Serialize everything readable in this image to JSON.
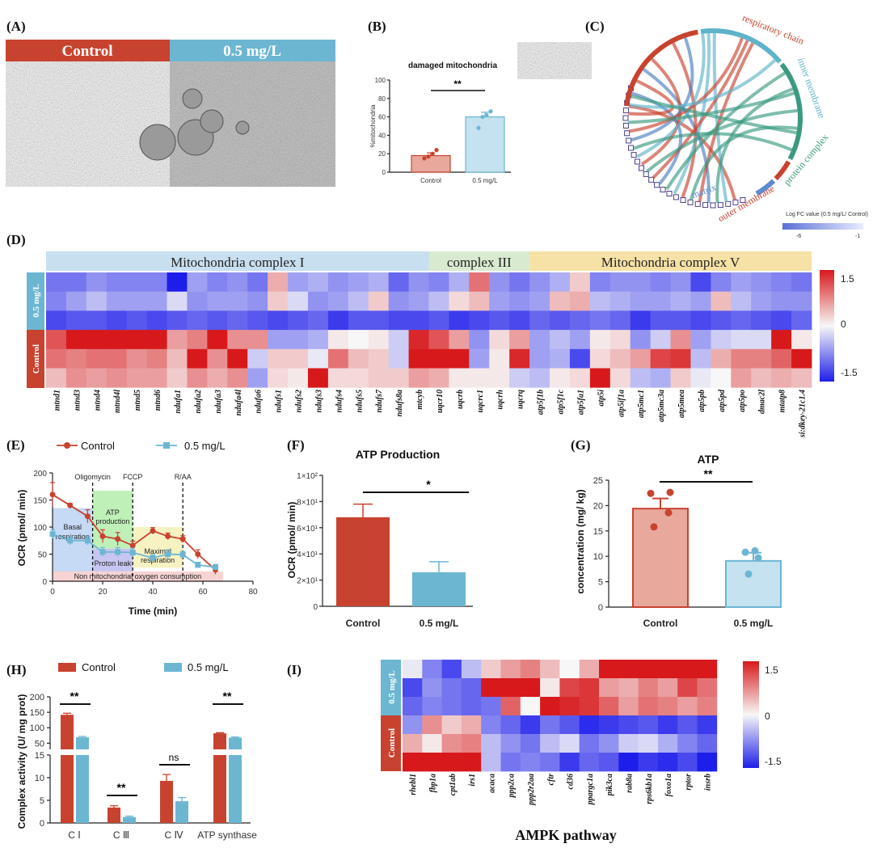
{
  "panels": {
    "a": "(A)",
    "b": "(B)",
    "c": "(C)",
    "d": "(D)",
    "e": "(E)",
    "f": "(F)",
    "g": "(G)",
    "h": "(H)",
    "i": "(I)"
  },
  "colors": {
    "control": "#c8432f",
    "treat": "#6cb6d2",
    "red": "#d7191c",
    "white": "#f7f7f7",
    "blue": "#1f1fe8"
  },
  "chart_data": [
    {
      "id": "A",
      "type": "image",
      "labels": [
        "Control",
        "0.5 mg/L"
      ]
    },
    {
      "id": "B",
      "type": "bar",
      "title": "damaged mitochondria",
      "ylabel": "%mitochondria",
      "categories": [
        "Control",
        "0.5 mg/L"
      ],
      "values": [
        18,
        60
      ],
      "errors": [
        3,
        5
      ],
      "points": [
        [
          15,
          17,
          20,
          24
        ],
        [
          48,
          60,
          62,
          66
        ]
      ],
      "ylim": [
        0,
        100
      ],
      "yticks": [
        0,
        20,
        40,
        60,
        80,
        100
      ],
      "sig": "**"
    },
    {
      "id": "C",
      "type": "chord",
      "categories": [
        "respiratory chain",
        "inner membrane",
        "protein complex",
        "outer membrane",
        "matrix"
      ],
      "legend_title": "Log FC value (0.5 mg/L/ Control)",
      "legend_min": "-6",
      "legend_max": "-1"
    },
    {
      "id": "D",
      "type": "heatmap",
      "groups": [
        "Mitochondria complex I",
        "complex III",
        "Mitochondria complex V"
      ],
      "row_groups": [
        "0.5 mg/L",
        "Control"
      ],
      "genes": [
        "mtnd1",
        "mtnd3",
        "mtnd4",
        "mtnd4l",
        "mtnd5",
        "mtnd6",
        "ndufa1",
        "ndufa2",
        "ndufa3",
        "ndufa4l",
        "ndufa6",
        "ndufs1",
        "ndufs2",
        "ndufs3",
        "ndufs4",
        "ndufs5",
        "ndufs7",
        "ndufs8a",
        "mtcyb",
        "uqcr10",
        "uqcrb",
        "uqcrc1",
        "uqcrh",
        "uqcrq",
        "atp5f1b",
        "atp5f1c",
        "atp5fa1",
        "atp5i",
        "atp5if1a",
        "atp5mc1",
        "atp5mc3a",
        "atp5mea",
        "atp5pb",
        "atp5pd",
        "atp5po",
        "dmac2l",
        "mtatp8",
        "si:dkey-21c1.4"
      ],
      "colorbar": [
        "1.5",
        "0",
        "-1.5"
      ],
      "values": [
        [
          -0.9,
          -0.9,
          -0.7,
          -0.8,
          -0.8,
          -0.8,
          -1.5,
          -0.6,
          -0.8,
          -0.7,
          -0.9,
          0.5,
          -0.6,
          -0.5,
          -0.7,
          -0.6,
          -0.5,
          -1.0,
          -0.7,
          -0.8,
          -0.5,
          0.9,
          -0.7,
          -0.9,
          -0.7,
          -0.5,
          0.3,
          -0.8,
          -0.7,
          -0.7,
          -0.8,
          -0.7,
          -1.2,
          -0.8,
          -0.6,
          -0.7,
          -0.8,
          -0.9
        ],
        [
          -0.8,
          -0.6,
          -0.4,
          -0.6,
          -0.6,
          -0.6,
          -0.2,
          -0.7,
          -0.6,
          -0.6,
          -0.7,
          0.3,
          -0.2,
          -0.7,
          -0.6,
          -0.4,
          0.3,
          -0.7,
          -0.6,
          -0.4,
          0.2,
          0.4,
          -0.6,
          -0.7,
          -0.6,
          0.4,
          0.5,
          -0.4,
          -0.5,
          -0.6,
          -0.6,
          -0.5,
          -0.6,
          0.4,
          -0.4,
          -0.6,
          -0.7,
          -0.7
        ],
        [
          -1.2,
          -1.1,
          -1.1,
          -1.2,
          -1.1,
          -1.2,
          -1.1,
          -1.0,
          -1.1,
          -1.0,
          -1.1,
          -1.2,
          -1.1,
          -1.0,
          -1.3,
          -1.1,
          -1.1,
          -1.2,
          -1.2,
          -1.1,
          -1.3,
          -1.2,
          -1.1,
          -1.2,
          -1.0,
          -1.1,
          -1.0,
          -0.9,
          -1.0,
          -1.3,
          -1.1,
          -1.1,
          -1.2,
          -1.1,
          -1.0,
          -1.1,
          -1.2,
          -1.0
        ],
        [
          1.1,
          1.5,
          1.5,
          1.5,
          1.5,
          1.5,
          0.6,
          0.8,
          1.5,
          0.7,
          0.7,
          -0.6,
          -0.6,
          -0.5,
          0.1,
          0.0,
          0.1,
          -0.3,
          1.4,
          1.1,
          0.6,
          -0.7,
          0.2,
          0.6,
          -0.6,
          -0.4,
          -0.6,
          0.1,
          0.2,
          -0.7,
          -0.3,
          0.7,
          -0.6,
          -0.3,
          -0.2,
          -0.2,
          1.5,
          0.1
        ],
        [
          0.9,
          0.8,
          0.9,
          0.9,
          0.7,
          0.8,
          0.4,
          1.5,
          0.7,
          1.5,
          -0.3,
          0.3,
          0.3,
          -0.1,
          0.9,
          0.4,
          0.3,
          -0.3,
          1.5,
          1.5,
          1.5,
          -0.6,
          0.1,
          1.4,
          -0.6,
          -0.5,
          -1.2,
          0.2,
          0.4,
          0.6,
          1.2,
          1.3,
          -0.4,
          0.5,
          0.8,
          0.8,
          1.0,
          1.5
        ],
        [
          0.4,
          0.7,
          0.6,
          0.7,
          0.6,
          0.6,
          0.3,
          0.7,
          0.5,
          0.7,
          -0.6,
          0.2,
          0.1,
          1.5,
          0.2,
          0.2,
          0.3,
          0.3,
          0.6,
          0.5,
          0.1,
          0.1,
          0.1,
          -0.3,
          -0.4,
          0.1,
          0.2,
          1.5,
          0.2,
          -0.4,
          -0.5,
          0.3,
          -0.1,
          0.0,
          0.6,
          0.4,
          0.5,
          0.4
        ]
      ]
    },
    {
      "id": "E",
      "type": "line",
      "xlabel": "Time (min)",
      "ylabel": "OCR (pmol/ min)",
      "xlim": [
        0,
        80
      ],
      "ylim": [
        0,
        200
      ],
      "xticks": [
        0,
        20,
        40,
        60,
        80
      ],
      "yticks": [
        0,
        50,
        100,
        150,
        200
      ],
      "series": [
        {
          "name": "Control",
          "x": [
            0,
            7,
            14,
            20,
            26,
            32,
            40,
            46,
            52,
            58,
            65
          ],
          "y": [
            160,
            140,
            120,
            83,
            78,
            66,
            93,
            83,
            78,
            50,
            21
          ],
          "err": [
            22,
            4,
            12,
            12,
            12,
            8,
            6,
            6,
            6,
            8,
            8
          ]
        },
        {
          "name": "0.5 mg/L",
          "x": [
            0,
            7,
            14,
            20,
            26,
            32,
            40,
            46,
            52,
            58,
            65
          ],
          "y": [
            87,
            75,
            75,
            54,
            54,
            53,
            43,
            50,
            49,
            30,
            26
          ],
          "err": [
            8,
            8,
            8,
            8,
            8,
            8,
            6,
            8,
            6,
            5,
            5
          ]
        }
      ],
      "injections": [
        "Oligomycin",
        "FCCP",
        "R/AA"
      ],
      "regions": [
        "Basal respiration",
        "ATP production",
        "Proton leak",
        "Maximal respiration",
        "Non mitochondrial oxygen consumption"
      ]
    },
    {
      "id": "F",
      "type": "bar",
      "title": "ATP Production",
      "ylabel": "OCR (pmol/ min)",
      "categories": [
        "Control",
        "0.5 mg/L"
      ],
      "values": [
        68,
        26
      ],
      "errors": [
        10,
        8
      ],
      "ylim": [
        0,
        100
      ],
      "yticks": [
        "0",
        "2×10¹",
        "4×10¹",
        "6×10¹",
        "8×10¹",
        "1×10²"
      ],
      "sig": "*"
    },
    {
      "id": "G",
      "type": "bar",
      "title": "ATP",
      "ylabel": "concentration (mg/ kg)",
      "categories": [
        "Control",
        "0.5 mg/L"
      ],
      "values": [
        19.4,
        9.1
      ],
      "errors": [
        2,
        1.6
      ],
      "points": [
        [
          15.8,
          18.6,
          22.4,
          22.6
        ],
        [
          6.5,
          9.7,
          10.8,
          11.1
        ]
      ],
      "ylim": [
        0,
        25
      ],
      "yticks": [
        0,
        5,
        10,
        15,
        20,
        25
      ],
      "sig": "**"
    },
    {
      "id": "H",
      "type": "bar",
      "ylabel": "Complex activity (U/ mg prot)",
      "categories": [
        "C  Ⅰ",
        "C  Ⅲ",
        "C  Ⅳ",
        "ATP synthase"
      ],
      "series": [
        {
          "name": "Control",
          "values": [
            142,
            3.4,
            9.3,
            82
          ],
          "errors": [
            5,
            0.4,
            1.4,
            2
          ]
        },
        {
          "name": "0.5 mg/L",
          "values": [
            69,
            1.3,
            4.8,
            68
          ],
          "errors": [
            3,
            0.2,
            0.8,
            2
          ]
        }
      ],
      "yticks_low": [
        0,
        5,
        10,
        15
      ],
      "yticks_high": [
        50,
        100,
        150,
        200
      ],
      "sig": [
        "**",
        "**",
        "ns",
        "**"
      ]
    },
    {
      "id": "I",
      "type": "heatmap",
      "title": "AMPK pathway",
      "row_groups": [
        "0.5 mg/L",
        "Control"
      ],
      "genes": [
        "rhebl1",
        "fbp1a",
        "cpt1ab",
        "irs1",
        "acaca",
        "ppp2ca",
        "ppp2r2aa",
        "cftr",
        "cd36",
        "ppargc1a",
        "pik3ca",
        "rab8a",
        "rps6kb1a",
        "foxo1a",
        "rptor",
        "insrb"
      ],
      "colorbar": [
        "1.5",
        "0",
        "-1.5"
      ],
      "values": [
        [
          -0.1,
          -0.8,
          -1.2,
          -0.4,
          0.3,
          0.6,
          0.8,
          0.4,
          0.0,
          0.5,
          1.5,
          1.5,
          1.5,
          1.5,
          1.5,
          1.5
        ],
        [
          -1.2,
          -0.7,
          -0.9,
          -1.0,
          1.5,
          1.5,
          1.5,
          0.1,
          1.2,
          1.3,
          0.6,
          0.5,
          0.8,
          0.6,
          1.2,
          0.9
        ],
        [
          -1.0,
          -0.8,
          -0.9,
          -1.0,
          -0.9,
          1.0,
          0.0,
          1.5,
          1.4,
          1.3,
          1.0,
          0.6,
          0.9,
          0.8,
          0.6,
          0.8
        ],
        [
          -0.7,
          0.7,
          0.3,
          0.5,
          -0.8,
          -1.0,
          -1.3,
          -0.9,
          -1.1,
          -1.4,
          -1.3,
          -1.2,
          -1.1,
          -1.3,
          -1.1,
          -1.3
        ],
        [
          0.5,
          0.1,
          0.7,
          0.8,
          -0.4,
          -0.7,
          -0.9,
          -0.4,
          -0.2,
          -0.9,
          -0.7,
          -0.3,
          -0.2,
          -0.5,
          -0.8,
          -1.0
        ],
        [
          1.5,
          1.5,
          1.5,
          1.5,
          -0.4,
          -0.9,
          -0.8,
          -0.9,
          -1.3,
          -1.0,
          -1.1,
          -1.5,
          -1.3,
          -1.4,
          -1.2,
          -1.5
        ]
      ]
    }
  ]
}
